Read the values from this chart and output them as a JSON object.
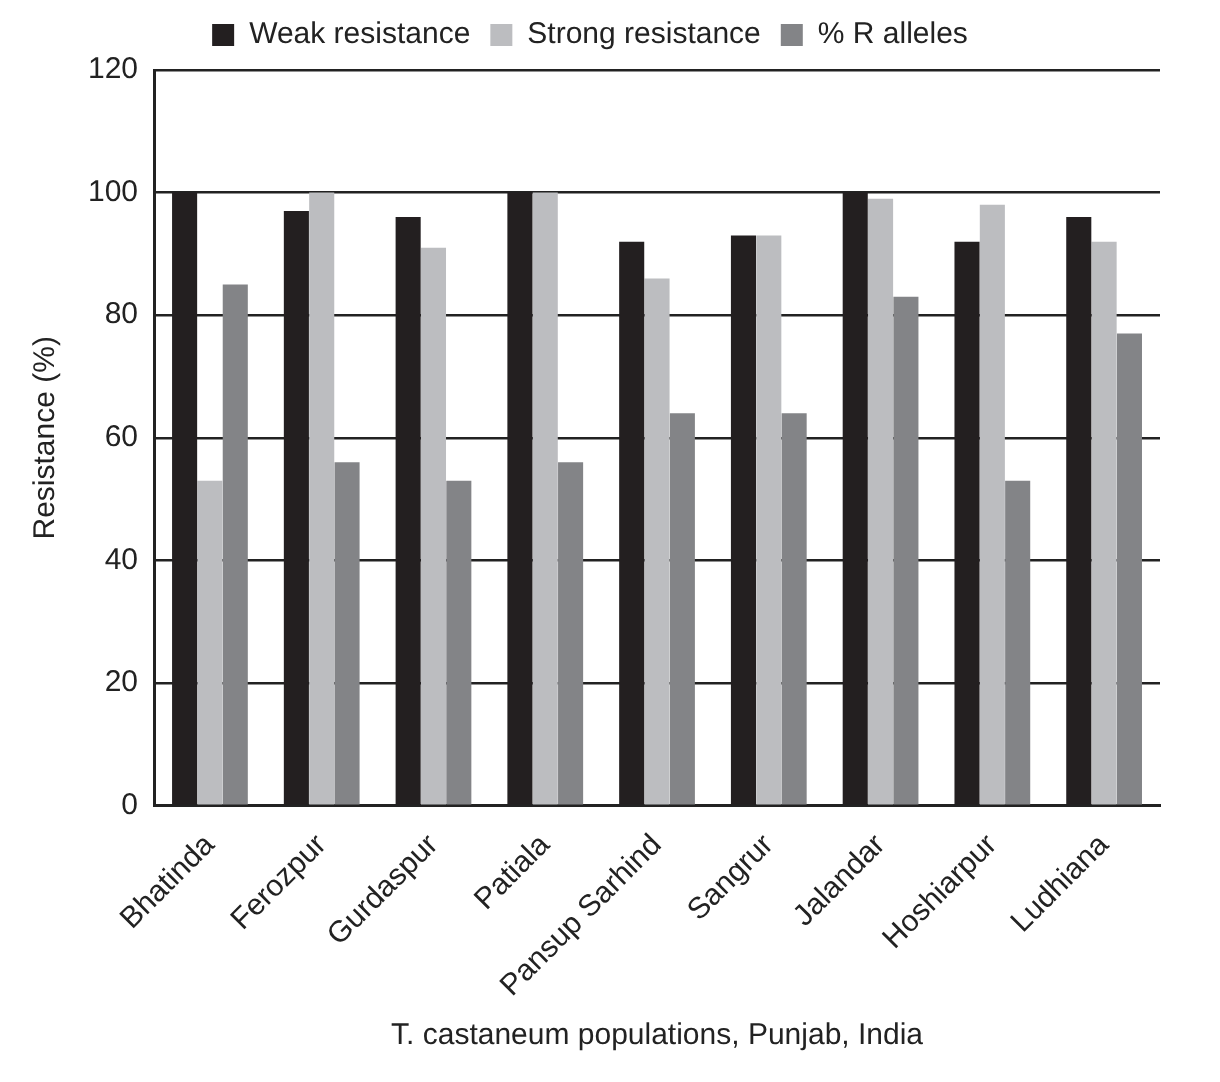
{
  "chart_data": {
    "type": "bar",
    "xlabel": "T. castaneum populations, Punjab, India",
    "ylabel": "Resistance (%)",
    "categories": [
      "Bhatinda",
      "Ferozpur",
      "Gurdaspur",
      "Patiala",
      "Pansup Sarhind",
      "Sangrur",
      "Jalandar",
      "Hoshiarpur",
      "Ludhiana"
    ],
    "series": [
      {
        "name": "Weak resistance",
        "color": "#231f20",
        "values": [
          100,
          97,
          96,
          100,
          92,
          93,
          100,
          92,
          96
        ]
      },
      {
        "name": "Strong resistance",
        "color": "#bcbdc0",
        "values": [
          53,
          100,
          91,
          100,
          86,
          93,
          99,
          98,
          92
        ]
      },
      {
        "name": "% R alleles",
        "color": "#838487",
        "values": [
          85,
          56,
          53,
          56,
          64,
          64,
          83,
          53,
          77
        ]
      }
    ],
    "ylim": [
      0,
      120
    ],
    "yticks": [
      0,
      20,
      40,
      60,
      80,
      100,
      120
    ],
    "grid": "y",
    "legend": "top"
  }
}
